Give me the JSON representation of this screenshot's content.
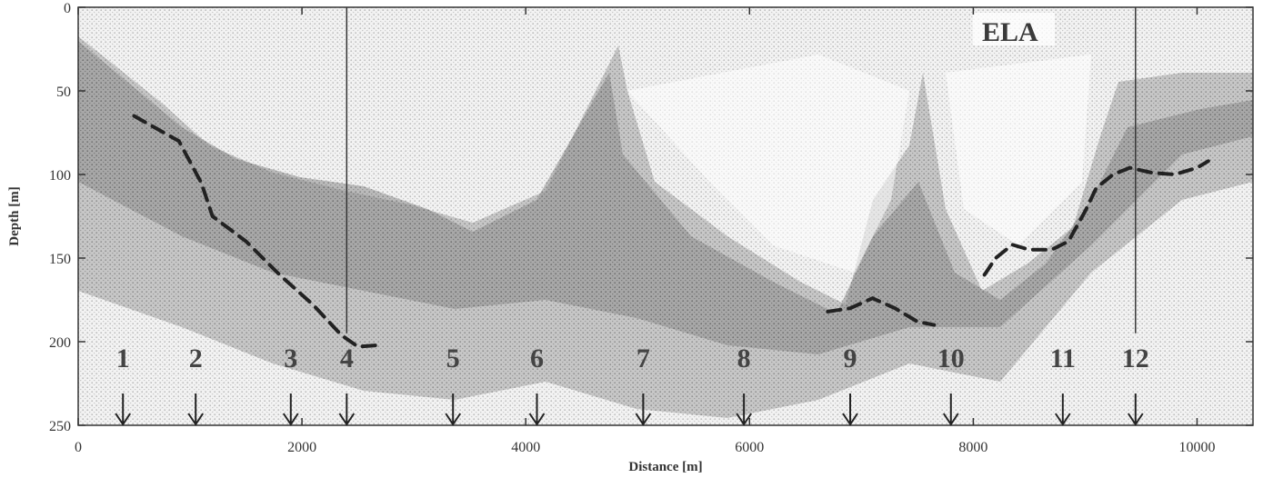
{
  "chart_data": {
    "type": "line",
    "title": "",
    "xlabel": "Distance [m]",
    "ylabel": "Depth [m]",
    "xlim": [
      0,
      10500
    ],
    "ylim": [
      0,
      250
    ],
    "y_inverted": true,
    "grid": false,
    "x_ticks": [
      0,
      2000,
      4000,
      6000,
      8000,
      10000
    ],
    "y_ticks": [
      0,
      50,
      100,
      150,
      200,
      250
    ],
    "annotation": "ELA",
    "series": [
      {
        "style": "dashed",
        "points": [
          [
            500,
            65
          ],
          [
            900,
            80
          ],
          [
            1100,
            105
          ],
          [
            1200,
            125
          ],
          [
            1500,
            140
          ],
          [
            1800,
            160
          ],
          [
            2100,
            178
          ],
          [
            2350,
            196
          ],
          [
            2500,
            203
          ],
          [
            2700,
            202
          ]
        ]
      },
      {
        "style": "dashed",
        "points": [
          [
            6700,
            182
          ],
          [
            6900,
            180
          ],
          [
            7100,
            174
          ],
          [
            7300,
            180
          ],
          [
            7500,
            188
          ],
          [
            7650,
            190
          ]
        ]
      },
      {
        "style": "dashed",
        "points": [
          [
            8100,
            160
          ],
          [
            8200,
            150
          ],
          [
            8350,
            142
          ],
          [
            8500,
            145
          ],
          [
            8700,
            145
          ],
          [
            8850,
            140
          ],
          [
            9000,
            122
          ],
          [
            9100,
            108
          ],
          [
            9250,
            100
          ],
          [
            9400,
            96
          ],
          [
            9600,
            99
          ],
          [
            9800,
            100
          ],
          [
            10000,
            96
          ],
          [
            10100,
            92
          ]
        ]
      }
    ],
    "vertical_lines": [
      2400,
      9450
    ],
    "markers": [
      {
        "label": "1",
        "x": 400
      },
      {
        "label": "2",
        "x": 1050
      },
      {
        "label": "3",
        "x": 1900
      },
      {
        "label": "4",
        "x": 2400
      },
      {
        "label": "5",
        "x": 3350
      },
      {
        "label": "6",
        "x": 4100
      },
      {
        "label": "7",
        "x": 5050
      },
      {
        "label": "8",
        "x": 5950
      },
      {
        "label": "9",
        "x": 6900
      },
      {
        "label": "10",
        "x": 7800
      },
      {
        "label": "11",
        "x": 8800
      },
      {
        "label": "12",
        "x": 9450
      }
    ]
  }
}
